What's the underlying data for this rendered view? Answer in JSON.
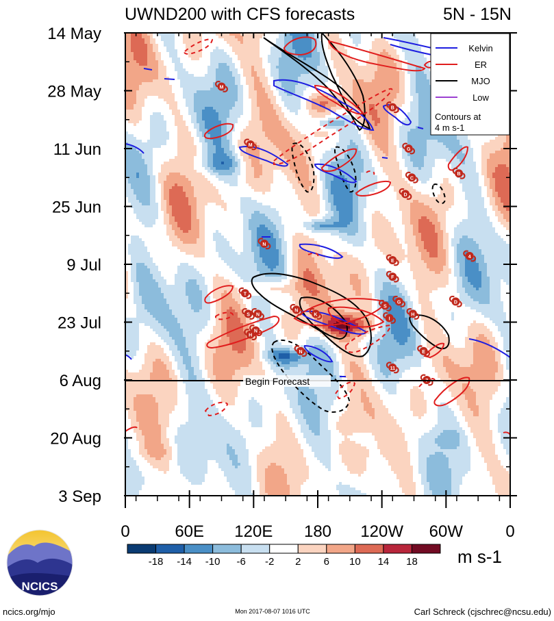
{
  "chart_data": {
    "type": "heatmap",
    "title": "UWND200 with CFS forecasts",
    "region": "5N - 15N",
    "x_ticks": [
      "0",
      "60E",
      "120E",
      "180",
      "120W",
      "60W",
      "0"
    ],
    "y_ticks": [
      "14 May",
      "28 May",
      "11 Jun",
      "25 Jun",
      "9 Jul",
      "23 Jul",
      "6 Aug",
      "20 Aug",
      "3 Sep"
    ],
    "forecast_label": "Begin Forecast",
    "forecast_date": "6 Aug",
    "legend": {
      "entries": [
        {
          "name": "Kelvin",
          "color": "#1d1de0"
        },
        {
          "name": "ER",
          "color": "#e01d1d"
        },
        {
          "name": "MJO",
          "color": "#000000"
        },
        {
          "name": "Low",
          "color": "#9b3fd0"
        }
      ],
      "note": "Contours at 4 m s-1"
    },
    "colorbar": {
      "labels": [
        "-18",
        "-14",
        "-10",
        "-6",
        "-2",
        "2",
        "6",
        "10",
        "14",
        "18"
      ],
      "colors": [
        "#0a3b72",
        "#1f5fa8",
        "#4a8fc6",
        "#8cbcdc",
        "#c8dff0",
        "#ffffff",
        "#fbd4c0",
        "#f2a688",
        "#dd6a55",
        "#b8263b",
        "#720b23"
      ],
      "units": "m s-1"
    },
    "storms": [
      {
        "letter": "M",
        "lon": 90,
        "date": "27 May"
      },
      {
        "letter": "B",
        "lon": 250,
        "date": "1 Jun"
      },
      {
        "letter": "M",
        "lon": 117,
        "date": "10 Jun"
      },
      {
        "letter": "G",
        "lon": 265,
        "date": "11 Jun"
      },
      {
        "letter": "C",
        "lon": 268,
        "date": "18 Jun"
      },
      {
        "letter": "B",
        "lon": 312,
        "date": "17 Jun"
      },
      {
        "letter": "D",
        "lon": 262,
        "date": "22 Jun"
      },
      {
        "letter": "N",
        "lon": 130,
        "date": "4 Jul"
      },
      {
        "letter": "4",
        "lon": 322,
        "date": "7 Jul"
      },
      {
        "letter": "E",
        "lon": 250,
        "date": "8 Jul"
      },
      {
        "letter": "F",
        "lon": 250,
        "date": "12 Jul"
      },
      {
        "letter": "T",
        "lon": 112,
        "date": "16 Jul"
      },
      {
        "letter": "D",
        "lon": 309,
        "date": "18 Jul"
      },
      {
        "letter": "S",
        "lon": 115,
        "date": "21 Jul"
      },
      {
        "letter": "N",
        "lon": 124,
        "date": "21 Jul"
      },
      {
        "letter": "N",
        "lon": 160,
        "date": "20 Jul"
      },
      {
        "letter": "K",
        "lon": 178,
        "date": "21 Jul"
      },
      {
        "letter": "G",
        "lon": 256,
        "date": "18 Jul"
      },
      {
        "letter": "S",
        "lon": 243,
        "date": "19 Jul"
      },
      {
        "letter": "I",
        "lon": 247,
        "date": "22 Jul"
      },
      {
        "letter": "H",
        "lon": 269,
        "date": "21 Jul"
      },
      {
        "letter": "H",
        "lon": 117,
        "date": "26 Jul"
      },
      {
        "letter": "N",
        "lon": 122,
        "date": "25 Jul"
      },
      {
        "letter": "N",
        "lon": 164,
        "date": "30 Jul"
      },
      {
        "letter": "E",
        "lon": 279,
        "date": "30 Jul"
      },
      {
        "letter": "11",
        "lon": 250,
        "date": "3 Aug"
      },
      {
        "letter": "7",
        "lon": 282,
        "date": "6 Aug"
      }
    ]
  },
  "footer": {
    "logo_text": "NCICS",
    "site": "ncics.org/mjo",
    "timestamp": "Mon 2017-08-07 1016 UTC",
    "author": "Carl Schreck (cjschrec@ncsu.edu)"
  },
  "icons": {
    "logo": "ncics-mountains-logo",
    "storm": "tropical-cyclone-icon"
  }
}
